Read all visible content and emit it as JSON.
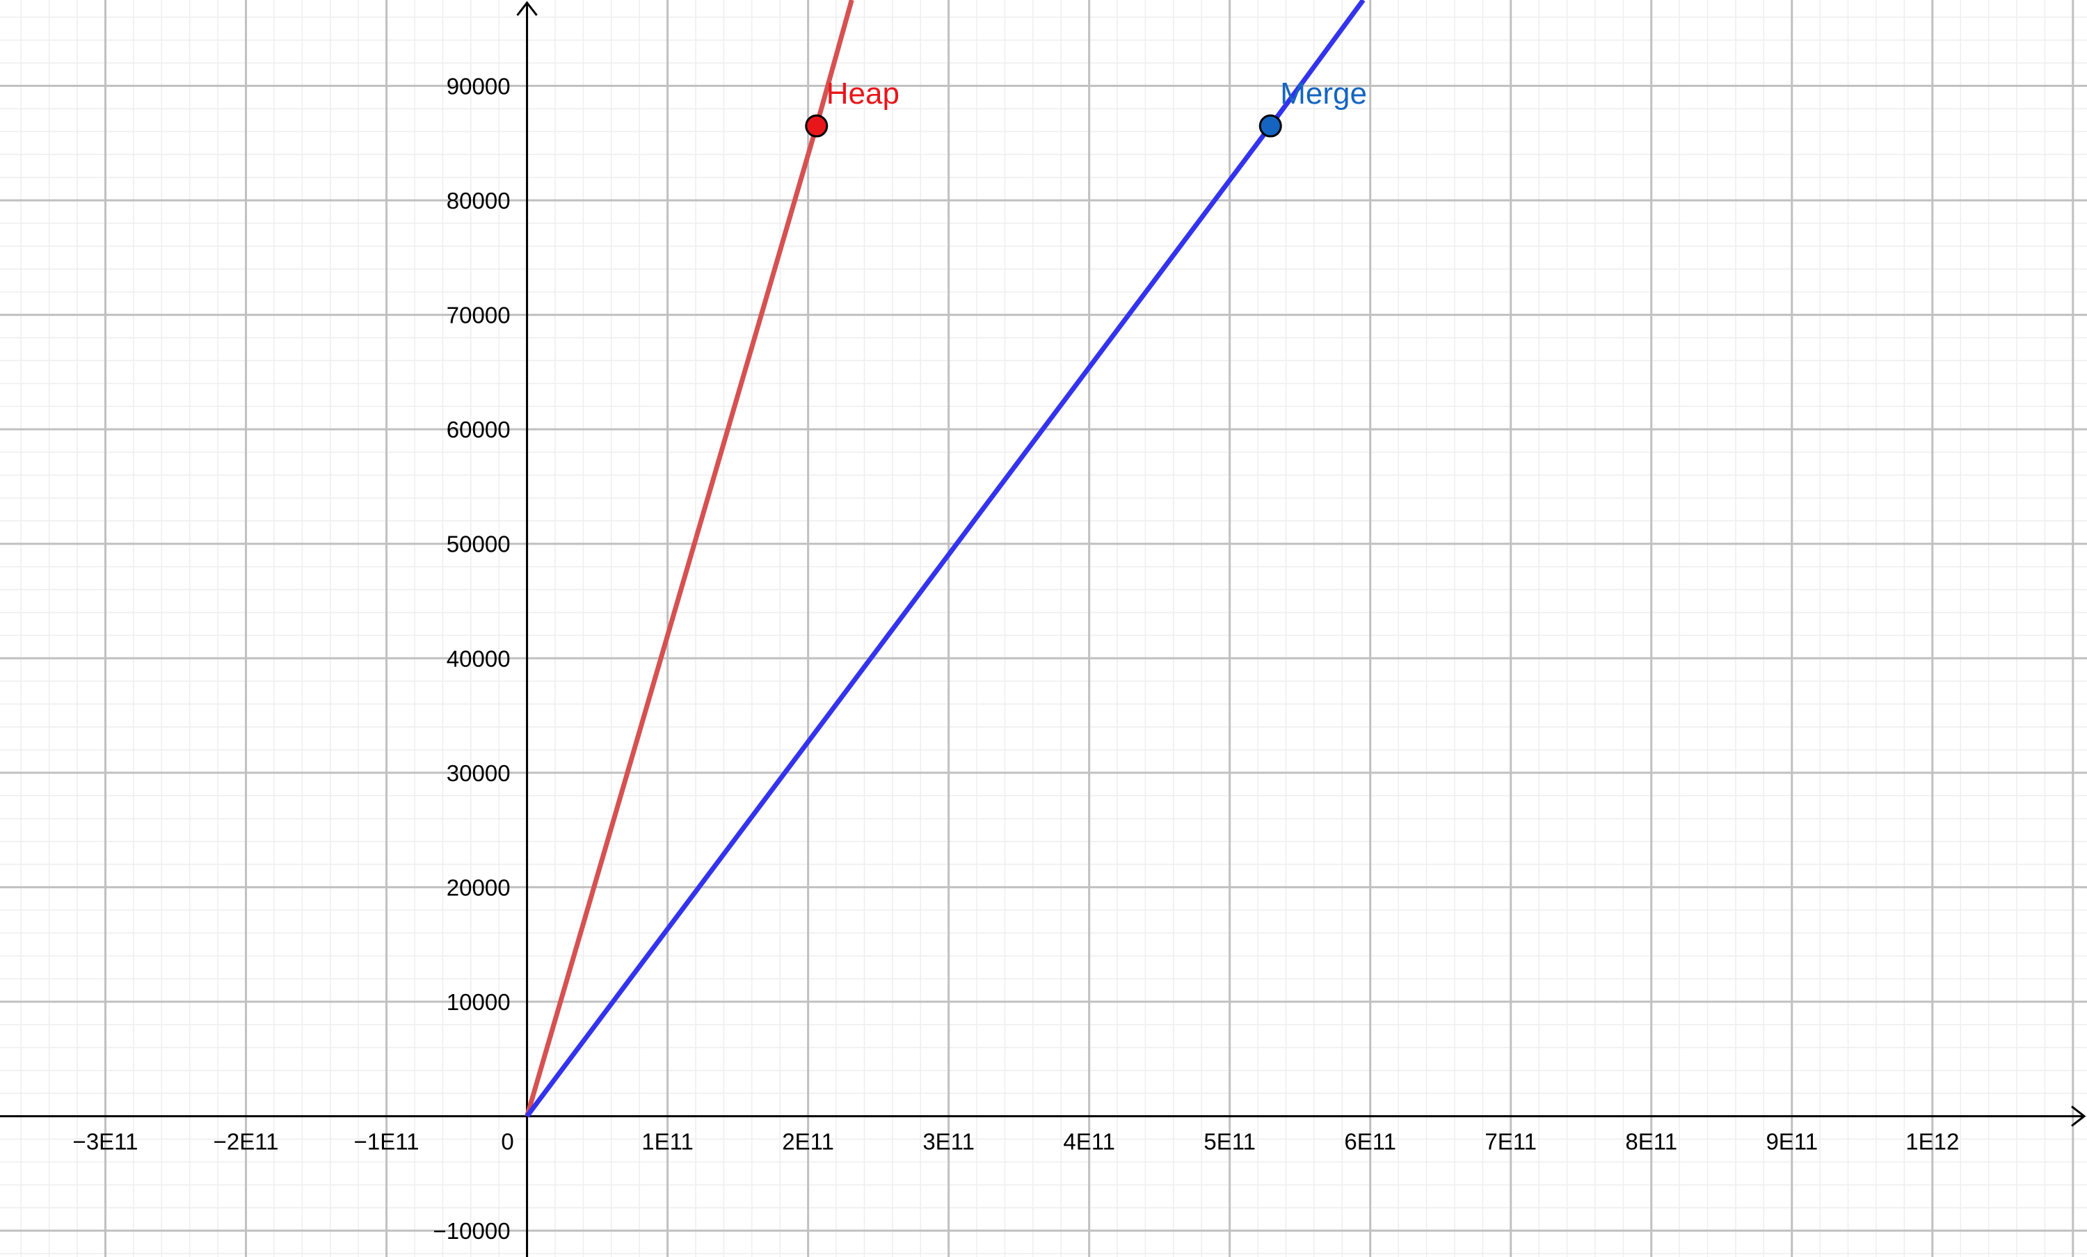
{
  "chart_data": {
    "type": "line",
    "title": "",
    "xlabel": "",
    "ylabel": "",
    "xlim": [
      -375000000000.0,
      1110000000000.0
    ],
    "ylim": [
      -12300,
      97500
    ],
    "grid": true,
    "x_ticks": [
      {
        "value": -300000000000.0,
        "label": "−3E11"
      },
      {
        "value": -200000000000.0,
        "label": "−2E11"
      },
      {
        "value": -100000000000.0,
        "label": "−1E11"
      },
      {
        "value": 0,
        "label": "0"
      },
      {
        "value": 100000000000.0,
        "label": "1E11"
      },
      {
        "value": 200000000000.0,
        "label": "2E11"
      },
      {
        "value": 300000000000.0,
        "label": "3E11"
      },
      {
        "value": 400000000000.0,
        "label": "4E11"
      },
      {
        "value": 500000000000.0,
        "label": "5E11"
      },
      {
        "value": 600000000000.0,
        "label": "6E11"
      },
      {
        "value": 700000000000.0,
        "label": "7E11"
      },
      {
        "value": 800000000000.0,
        "label": "8E11"
      },
      {
        "value": 900000000000.0,
        "label": "9E11"
      },
      {
        "value": 1000000000000.0,
        "label": "1E12"
      }
    ],
    "y_ticks": [
      {
        "value": -10000,
        "label": "−10000"
      },
      {
        "value": 10000,
        "label": "10000"
      },
      {
        "value": 20000,
        "label": "20000"
      },
      {
        "value": 30000,
        "label": "30000"
      },
      {
        "value": 40000,
        "label": "40000"
      },
      {
        "value": 50000,
        "label": "50000"
      },
      {
        "value": 60000,
        "label": "60000"
      },
      {
        "value": 70000,
        "label": "70000"
      },
      {
        "value": 80000,
        "label": "80000"
      },
      {
        "value": 90000,
        "label": "90000"
      }
    ],
    "series": [
      {
        "color": "#d65151",
        "x": [
          0,
          206000000000.0,
          231000000000.0
        ],
        "y": [
          0,
          86500,
          97500
        ]
      },
      {
        "color": "#3333ee",
        "x": [
          0,
          529000000000.0,
          595000000000.0
        ],
        "y": [
          0,
          86500,
          97500
        ]
      }
    ],
    "points": [
      {
        "label": "Heap",
        "x": 206000000000.0,
        "y": 86500,
        "fill": "#e8161b",
        "text_color": "#e8161b"
      },
      {
        "label": "Merge",
        "x": 529000000000.0,
        "y": 86500,
        "fill": "#1565c0",
        "text_color": "#1565c0"
      }
    ],
    "colors": {
      "grid_major": "#c0c0c0",
      "grid_minor": "#eeeeee",
      "axis": "#000000"
    }
  }
}
